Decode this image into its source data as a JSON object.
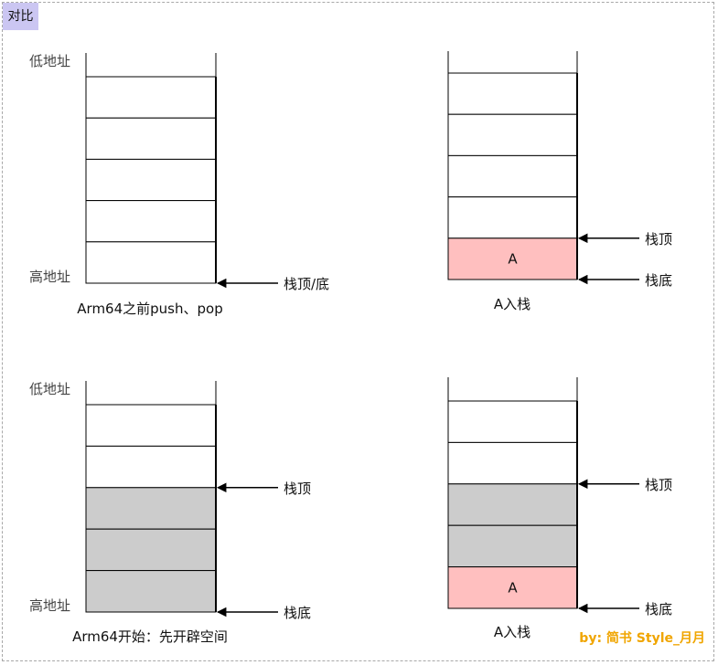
{
  "title": "对比",
  "watermark": "by: 简书 Style_月月",
  "labels": {
    "low_address": "低地址",
    "high_address": "高地址"
  },
  "diagrams": [
    {
      "caption": "Arm64之前push、pop",
      "fills": [
        "white",
        "white",
        "white",
        "white",
        "white"
      ],
      "cell_text": [
        "",
        "",
        "",
        "",
        ""
      ],
      "arrows": [
        {
          "label": "栈顶/底",
          "at_row": 5
        }
      ]
    },
    {
      "caption": "A入栈",
      "fills": [
        "white",
        "white",
        "white",
        "white",
        "pink"
      ],
      "cell_text": [
        "",
        "",
        "",
        "",
        "A"
      ],
      "arrows": [
        {
          "label": "栈顶",
          "at_row": 4
        },
        {
          "label": "栈底",
          "at_row": 5
        }
      ]
    },
    {
      "caption": "Arm64开始：先开辟空间",
      "fills": [
        "white",
        "white",
        "gray",
        "gray",
        "gray"
      ],
      "cell_text": [
        "",
        "",
        "",
        "",
        ""
      ],
      "arrows": [
        {
          "label": "栈顶",
          "at_row": 2
        },
        {
          "label": "栈底",
          "at_row": 5
        }
      ]
    },
    {
      "caption": "A入栈",
      "fills": [
        "white",
        "white",
        "gray",
        "gray",
        "pink"
      ],
      "cell_text": [
        "",
        "",
        "",
        "",
        "A"
      ],
      "arrows": [
        {
          "label": "栈顶",
          "at_row": 2
        },
        {
          "label": "栈底",
          "at_row": 5
        }
      ]
    }
  ],
  "colors": {
    "pink": "#ffbfbf",
    "gray": "#cccccc",
    "white": "#ffffff",
    "line": "#000000",
    "watermark": "#f0a500",
    "title_bg": "#cbc6f2"
  }
}
